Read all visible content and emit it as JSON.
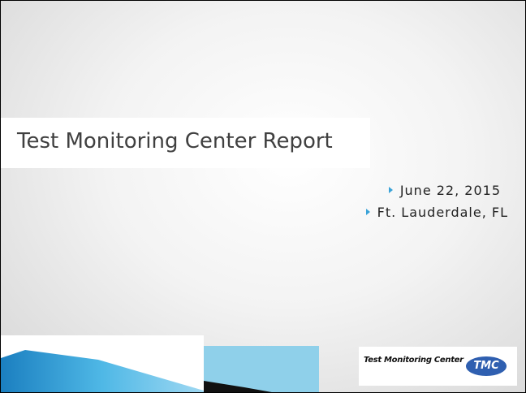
{
  "slide": {
    "title": "Test Monitoring Center Report",
    "bullets": [
      "June 22, 2015",
      "Ft. Lauderdale, FL"
    ],
    "logo": {
      "name": "Test Monitoring Center",
      "mark": "TMC"
    }
  }
}
